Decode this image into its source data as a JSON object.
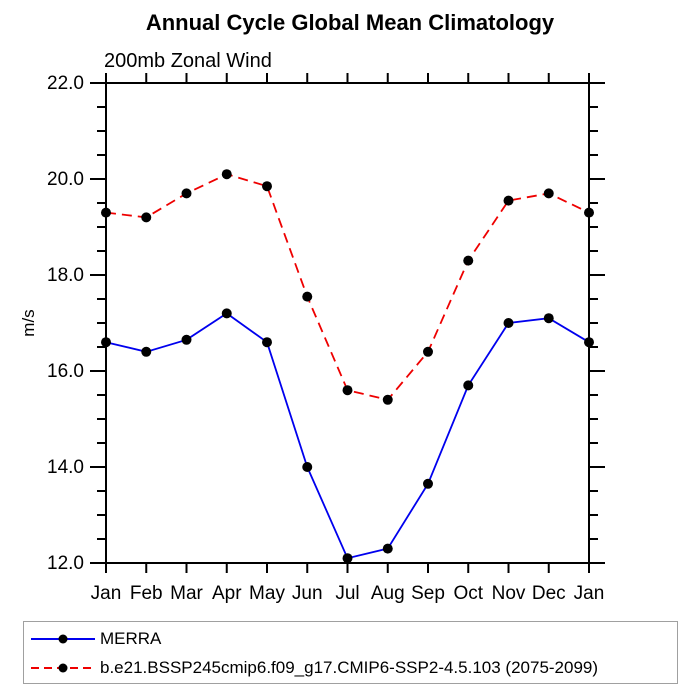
{
  "header": {
    "title": "Annual Cycle Global Mean Climatology",
    "subtitle": "200mb Zonal Wind"
  },
  "chart_data": {
    "type": "line",
    "title": "Annual Cycle Global Mean Climatology",
    "subtitle": "200mb Zonal Wind",
    "xlabel": "",
    "ylabel": "m/s",
    "categories": [
      "Jan",
      "Feb",
      "Mar",
      "Apr",
      "May",
      "Jun",
      "Jul",
      "Aug",
      "Sep",
      "Oct",
      "Nov",
      "Dec",
      "Jan"
    ],
    "ylim": [
      12.0,
      22.0
    ],
    "ytick_interval": 2.0,
    "yminor_interval": 0.5,
    "ytick_labels": [
      "12.0",
      "14.0",
      "16.0",
      "18.0",
      "20.0",
      "22.0"
    ],
    "grid": false,
    "legend_position": "bottom",
    "marker": "filled-circle",
    "marker_color": "#000000",
    "series": [
      {
        "name": "MERRA",
        "color": "#0000ee",
        "line_style": "solid",
        "values": [
          16.6,
          16.4,
          16.65,
          17.2,
          16.6,
          14.0,
          12.1,
          12.3,
          13.65,
          15.7,
          17.0,
          17.1,
          16.6
        ]
      },
      {
        "name": "b.e21.BSSP245cmip6.f09_g17.CMIP6-SSP2-4.5.103 (2075-2099)",
        "color": "#ee0000",
        "line_style": "dashed",
        "values": [
          19.3,
          19.2,
          19.7,
          20.1,
          19.85,
          17.55,
          15.6,
          15.4,
          16.4,
          18.3,
          19.55,
          19.7,
          19.3
        ]
      }
    ]
  }
}
